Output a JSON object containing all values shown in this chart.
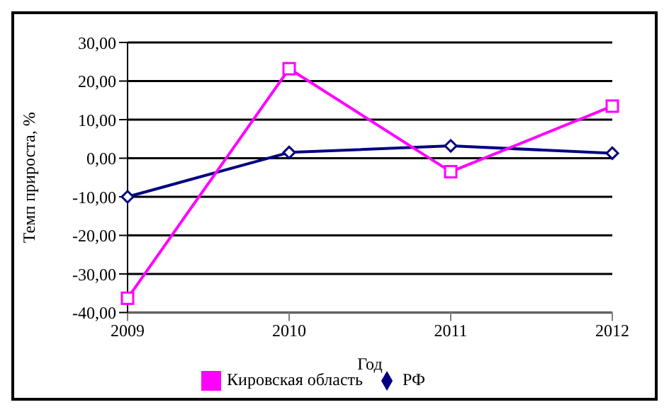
{
  "chart_data": {
    "type": "line",
    "xlabel": "Год",
    "ylabel": "Темп прироста, %",
    "categories": [
      "2009",
      "2010",
      "2011",
      "2012"
    ],
    "series": [
      {
        "name": "РФ",
        "color": "#000080",
        "marker": "diamond",
        "values": [
          -10,
          1.5,
          3.2,
          1.3
        ]
      },
      {
        "name": "Кировская область",
        "color": "#ff00ff",
        "marker": "square",
        "values": [
          -36.3,
          23.2,
          -3.5,
          13.5
        ]
      }
    ],
    "ylim": [
      -40,
      30
    ],
    "yticks": [
      {
        "value": -40,
        "label": "-40,00"
      },
      {
        "value": -30,
        "label": "-30,00"
      },
      {
        "value": -20,
        "label": "-20,00"
      },
      {
        "value": -10,
        "label": "-10,00"
      },
      {
        "value": 0,
        "label": "0,00"
      },
      {
        "value": 10,
        "label": "10,00"
      },
      {
        "value": 20,
        "label": "20,00"
      },
      {
        "value": 30,
        "label": "30,00"
      }
    ],
    "grid": "y",
    "legend": "bottom"
  }
}
